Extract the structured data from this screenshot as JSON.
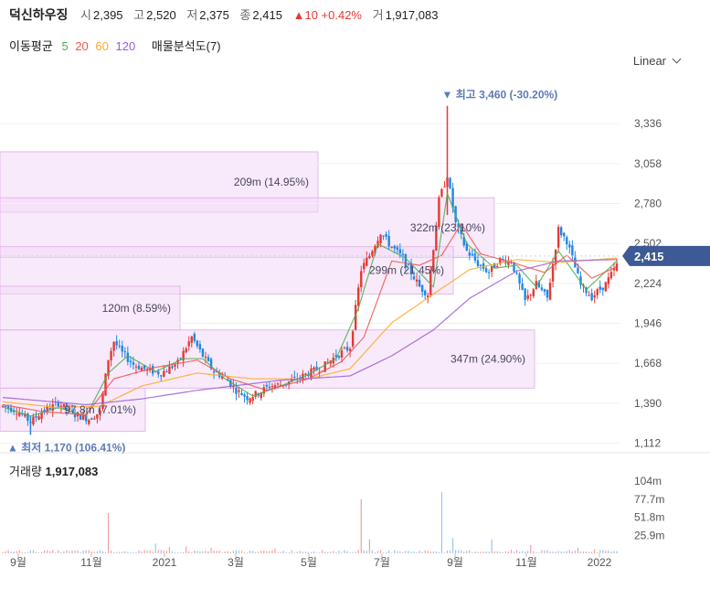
{
  "header": {
    "name": "덕신하우징",
    "open_label": "시",
    "open": "2,395",
    "high_label": "고",
    "high": "2,520",
    "low_label": "저",
    "low": "2,375",
    "close_label": "종",
    "close": "2,415",
    "change": "▲10 +0.42%",
    "volume_label": "거",
    "volume": "1,917,083"
  },
  "ma_bar": {
    "label": "이동평균",
    "periods": [
      "5",
      "20",
      "60",
      "120"
    ],
    "profile_label": "매물분석도(7)"
  },
  "scale_selector": "Linear",
  "colors": {
    "up": "#e53935",
    "down": "#1e88e5",
    "ma5": "#4caf50",
    "ma20": "#ef5350",
    "ma60": "#ffa726",
    "ma120": "#9c5bd6",
    "profile": "#f3d9f6",
    "annotation": "#5c7bb8",
    "current_badge": "#3d5a96"
  },
  "chart_data": {
    "type": "candlestick",
    "y_ticks": [
      "3,336",
      "3,058",
      "2,780",
      "2,502",
      "2,224",
      "1,946",
      "1,668",
      "1,390",
      "1,112"
    ],
    "ylim": [
      1090,
      3560
    ],
    "x_ticks": [
      "9월",
      "11월",
      "2021",
      "3월",
      "5월",
      "7월",
      "9월",
      "11월",
      "2022"
    ],
    "current_price_label": "2,415",
    "current_price": 2415,
    "max_annotation": "▼ 최고 3,460 (-30.20%)",
    "min_annotation": "▲ 최저 1,170 (106.41%)",
    "volume_profile": [
      {
        "label": "209m (14.95%)",
        "y_low": 2720,
        "y_high": 3140,
        "share": 0.4478
      },
      {
        "label": "322m (23.10%)",
        "y_low": 2405,
        "y_high": 2820,
        "share": 0.6962
      },
      {
        "label": "299m (21.45%)",
        "y_low": 2150,
        "y_high": 2480,
        "share": 0.6384
      },
      {
        "label": "120m (8.59%)",
        "y_low": 1900,
        "y_high": 2205,
        "share": 0.2535
      },
      {
        "label": "347m (24.90%)",
        "y_low": 1495,
        "y_high": 1900,
        "share": 0.7529
      },
      {
        "label": "97.8m (7.01%)",
        "y_low": 1195,
        "y_high": 1495,
        "share": 0.2046
      }
    ],
    "price_path": [
      [
        0,
        1370
      ],
      [
        5,
        1340
      ],
      [
        10,
        1260
      ],
      [
        14,
        1330
      ],
      [
        20,
        1390
      ],
      [
        26,
        1310
      ],
      [
        31,
        1280
      ],
      [
        35,
        1330
      ],
      [
        38,
        1700
      ],
      [
        40,
        1820
      ],
      [
        43,
        1740
      ],
      [
        47,
        1660
      ],
      [
        52,
        1620
      ],
      [
        57,
        1600
      ],
      [
        63,
        1670
      ],
      [
        68,
        1850
      ],
      [
        72,
        1720
      ],
      [
        76,
        1610
      ],
      [
        80,
        1570
      ],
      [
        84,
        1480
      ],
      [
        88,
        1430
      ],
      [
        92,
        1460
      ],
      [
        96,
        1510
      ],
      [
        100,
        1520
      ],
      [
        106,
        1560
      ],
      [
        110,
        1600
      ],
      [
        115,
        1640
      ],
      [
        120,
        1720
      ],
      [
        125,
        1780
      ],
      [
        129,
        2320
      ],
      [
        132,
        2420
      ],
      [
        136,
        2580
      ],
      [
        139,
        2500
      ],
      [
        143,
        2420
      ],
      [
        147,
        2300
      ],
      [
        150,
        2200
      ],
      [
        153,
        2150
      ],
      [
        157,
        2800
      ],
      [
        160,
        2980
      ],
      [
        163,
        2640
      ],
      [
        167,
        2450
      ],
      [
        171,
        2360
      ],
      [
        175,
        2300
      ],
      [
        179,
        2390
      ],
      [
        183,
        2380
      ],
      [
        188,
        2100
      ],
      [
        192,
        2220
      ],
      [
        196,
        2120
      ],
      [
        200,
        2600
      ],
      [
        203,
        2520
      ],
      [
        208,
        2210
      ],
      [
        212,
        2130
      ],
      [
        217,
        2220
      ],
      [
        221,
        2350
      ]
    ],
    "ma5_path": [
      [
        0,
        1365
      ],
      [
        10,
        1300
      ],
      [
        20,
        1360
      ],
      [
        30,
        1300
      ],
      [
        38,
        1600
      ],
      [
        45,
        1720
      ],
      [
        55,
        1610
      ],
      [
        65,
        1700
      ],
      [
        72,
        1700
      ],
      [
        80,
        1560
      ],
      [
        90,
        1440
      ],
      [
        100,
        1510
      ],
      [
        110,
        1590
      ],
      [
        120,
        1700
      ],
      [
        128,
        2050
      ],
      [
        135,
        2500
      ],
      [
        145,
        2400
      ],
      [
        155,
        2200
      ],
      [
        160,
        2850
      ],
      [
        167,
        2500
      ],
      [
        177,
        2330
      ],
      [
        185,
        2350
      ],
      [
        192,
        2200
      ],
      [
        200,
        2450
      ],
      [
        210,
        2180
      ],
      [
        221,
        2380
      ]
    ],
    "ma20_path": [
      [
        0,
        1380
      ],
      [
        15,
        1330
      ],
      [
        30,
        1310
      ],
      [
        40,
        1560
      ],
      [
        55,
        1640
      ],
      [
        70,
        1690
      ],
      [
        82,
        1560
      ],
      [
        95,
        1480
      ],
      [
        110,
        1560
      ],
      [
        122,
        1680
      ],
      [
        130,
        1850
      ],
      [
        140,
        2380
      ],
      [
        150,
        2350
      ],
      [
        158,
        2420
      ],
      [
        165,
        2640
      ],
      [
        172,
        2430
      ],
      [
        185,
        2360
      ],
      [
        195,
        2300
      ],
      [
        203,
        2420
      ],
      [
        212,
        2260
      ],
      [
        221,
        2340
      ]
    ],
    "ma60_path": [
      [
        0,
        1400
      ],
      [
        20,
        1360
      ],
      [
        35,
        1370
      ],
      [
        50,
        1510
      ],
      [
        70,
        1600
      ],
      [
        90,
        1560
      ],
      [
        110,
        1560
      ],
      [
        125,
        1630
      ],
      [
        140,
        1950
      ],
      [
        155,
        2150
      ],
      [
        168,
        2320
      ],
      [
        185,
        2390
      ],
      [
        200,
        2370
      ],
      [
        221,
        2400
      ]
    ],
    "ma120_path": [
      [
        0,
        1430
      ],
      [
        30,
        1380
      ],
      [
        50,
        1420
      ],
      [
        70,
        1480
      ],
      [
        100,
        1550
      ],
      [
        125,
        1580
      ],
      [
        140,
        1720
      ],
      [
        155,
        1900
      ],
      [
        168,
        2120
      ],
      [
        185,
        2310
      ],
      [
        200,
        2380
      ],
      [
        221,
        2390
      ]
    ],
    "volume_label": "거래량",
    "volume_value": "1,917,083",
    "volume_ticks": [
      "104m",
      "77.7m",
      "51.8m",
      "25.9m"
    ],
    "volume_ylim": [
      0,
      125
    ],
    "volume_spikes": [
      [
        38,
        58
      ],
      [
        55,
        14
      ],
      [
        60,
        9
      ],
      [
        66,
        10
      ],
      [
        75,
        8
      ],
      [
        98,
        7
      ],
      [
        129,
        78
      ],
      [
        132,
        20
      ],
      [
        158,
        88
      ],
      [
        162,
        22
      ],
      [
        176,
        20
      ],
      [
        190,
        12
      ],
      [
        207,
        8
      ],
      [
        213,
        6
      ]
    ]
  }
}
